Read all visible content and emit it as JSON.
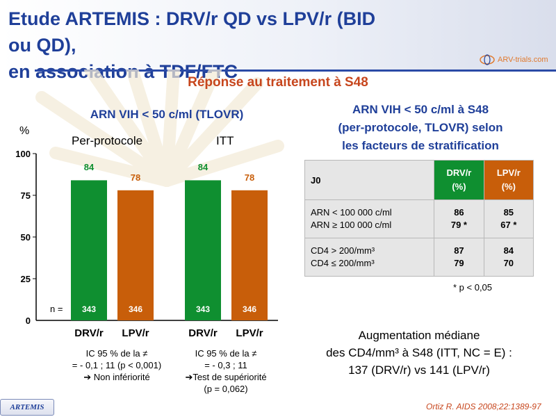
{
  "header": {
    "title_line1": "Etude ARTEMIS : DRV/r QD vs LPV/r (BID ou QD),",
    "title_line2": "en association à TDF/FTC",
    "logo_text": "ARV-trials.com"
  },
  "subtitle": "Réponse au traitement à S48",
  "colors": {
    "drv": "#0f8f30",
    "lpv": "#c85e0a",
    "title_blue": "#1f3f99",
    "accent": "#c7461d"
  },
  "chart_data": {
    "type": "bar",
    "title": "ARN VIH < 50 c/ml (TLOVR)",
    "ylabel": "%",
    "ylim": [
      0,
      100
    ],
    "yticks": [
      "0",
      "25",
      "50",
      "75",
      "100"
    ],
    "groups": [
      "Per-protocole",
      "ITT"
    ],
    "categories": [
      "DRV/r",
      "LPV/r",
      "DRV/r",
      "LPV/r"
    ],
    "series": [
      {
        "values": [
          84,
          78,
          84,
          78
        ]
      }
    ],
    "n_label": "n =",
    "n_values": [
      "343",
      "346",
      "343",
      "346"
    ],
    "value_labels": [
      "84",
      "78",
      "84",
      "78"
    ]
  },
  "notes": {
    "pp": [
      "IC 95 % de la ≠",
      "= - 0,1 ; 11 (p < 0,001)",
      "➔ Non infériorité"
    ],
    "itt": [
      "IC 95 % de la ≠",
      "= - 0,3 ; 11",
      "➔Test de supériorité",
      "(p = 0,062)"
    ]
  },
  "right": {
    "title_lines": [
      "ARN VIH < 50 c/ml à S48",
      "(per-protocole, TLOVR) selon",
      "les facteurs de stratification"
    ],
    "table": {
      "header": {
        "j0": "J0",
        "drv": [
          "DRV/r",
          "(%)"
        ],
        "lpv": [
          "LPV/r",
          "(%)"
        ]
      },
      "rows": [
        {
          "labels": [
            "ARN < 100 000 c/ml",
            "ARN ≥ 100 000 c/ml"
          ],
          "drv": [
            "86",
            "79 *"
          ],
          "lpv": [
            "85",
            "67 *"
          ]
        },
        {
          "labels": [
            "CD4 > 200/mm³",
            "CD4 ≤ 200/mm³"
          ],
          "drv": [
            "87",
            "79"
          ],
          "lpv": [
            "84",
            "70"
          ]
        }
      ]
    },
    "p_note": "* p < 0,05",
    "cd4_lines": [
      "Augmentation médiane",
      "des CD4/mm³ à S48 (ITT, NC = E) :",
      "137 (DRV/r) vs 141 (LPV/r)"
    ]
  },
  "reference": "Ortiz R. AIDS 2008;22:1389-97",
  "badge": "ARTEMIS"
}
